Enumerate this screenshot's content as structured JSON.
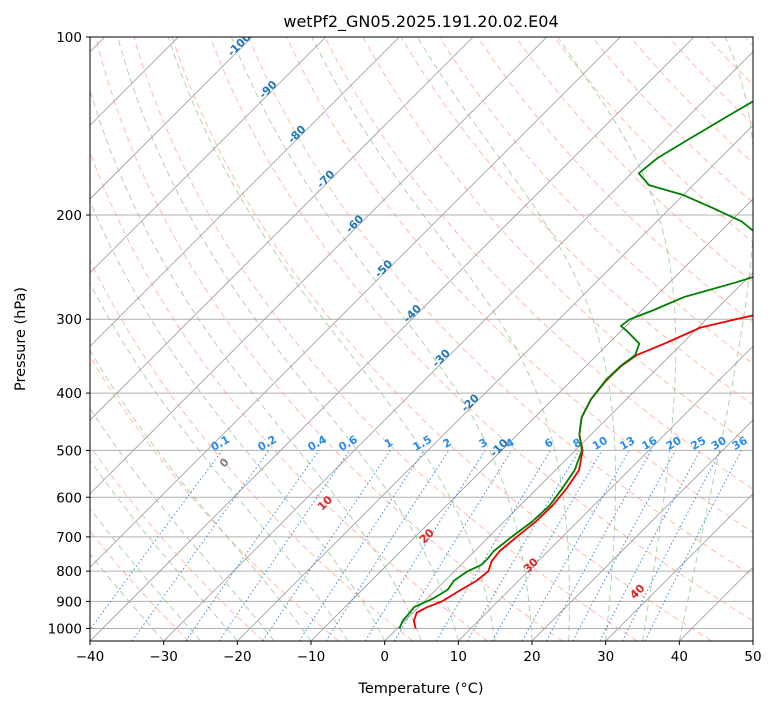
{
  "chart_data": {
    "type": "skew-t log-p",
    "title": "wetPf2_GN05.2025.191.20.02.E04",
    "xlabel": "Temperature (°C)",
    "ylabel": "Pressure (hPa)",
    "xlim": [
      -40,
      50
    ],
    "ylim": [
      1050,
      100
    ],
    "y_scale": "log",
    "skew_slope": 1,
    "grid": true,
    "x_ticks": [
      -40,
      -30,
      -20,
      -10,
      0,
      10,
      20,
      30,
      40,
      50
    ],
    "x_tick_labels": [
      "−40",
      "−30",
      "−20",
      "−10",
      "0",
      "10",
      "20",
      "30",
      "40",
      "50"
    ],
    "y_ticks": [
      100,
      200,
      300,
      400,
      500,
      600,
      700,
      800,
      900,
      1000
    ],
    "y_tick_labels": [
      "100",
      "200",
      "300",
      "400",
      "500",
      "600",
      "700",
      "800",
      "900",
      "1000"
    ],
    "colors": {
      "temperature": "#ee0000",
      "dewpoint": "#008000",
      "dry_adiabat": "#ff9070",
      "moist_adiabat": "#7fbf7f",
      "mixing_ratio": "#1e78d6",
      "isotherm": "#9a9a9a",
      "grid": "#b0b0b0",
      "dry_adiabat_label": "#d62728",
      "moist_adiabat_label": "#1f77b4",
      "mixing_ratio_label": "#2b8ce8",
      "zero_label": "#7f7f7f"
    },
    "series": [
      {
        "kind": "temperature",
        "points": [
          [
            1000,
            2.5
          ],
          [
            970,
            1.2
          ],
          [
            940,
            0.5
          ],
          [
            920,
            1.2
          ],
          [
            900,
            2.4
          ],
          [
            860,
            3.4
          ],
          [
            830,
            4.3
          ],
          [
            800,
            4.6
          ],
          [
            770,
            3.7
          ],
          [
            740,
            3.4
          ],
          [
            700,
            3.8
          ],
          [
            660,
            4.3
          ],
          [
            620,
            4.4
          ],
          [
            580,
            4.0
          ],
          [
            540,
            3.2
          ],
          [
            500,
            1.0
          ],
          [
            470,
            -1.6
          ],
          [
            440,
            -3.6
          ],
          [
            410,
            -4.8
          ],
          [
            380,
            -5.3
          ],
          [
            360,
            -5.2
          ],
          [
            345,
            -4.6
          ],
          [
            330,
            -2.4
          ],
          [
            310,
            0.3
          ],
          [
            300,
            4.0
          ],
          [
            290,
            8.2
          ],
          [
            280,
            11.8
          ],
          [
            260,
            17.5
          ],
          [
            240,
            22.4
          ],
          [
            220,
            26.6
          ],
          [
            200,
            30.2
          ],
          [
            180,
            33.2
          ],
          [
            160,
            36.4
          ],
          [
            140,
            40.3
          ],
          [
            120,
            45.5
          ],
          [
            100,
            51.0
          ]
        ]
      },
      {
        "kind": "dewpoint",
        "points": [
          [
            1000,
            0.3
          ],
          [
            970,
            -0.3
          ],
          [
            950,
            -0.4
          ],
          [
            920,
            -0.6
          ],
          [
            890,
            0.8
          ],
          [
            860,
            1.6
          ],
          [
            830,
            1.2
          ],
          [
            800,
            1.8
          ],
          [
            780,
            2.8
          ],
          [
            760,
            2.8
          ],
          [
            740,
            2.6
          ],
          [
            700,
            3.1
          ],
          [
            660,
            3.8
          ],
          [
            620,
            4.0
          ],
          [
            580,
            3.4
          ],
          [
            540,
            2.6
          ],
          [
            500,
            0.9
          ],
          [
            470,
            -1.6
          ],
          [
            440,
            -3.6
          ],
          [
            410,
            -4.8
          ],
          [
            380,
            -5.4
          ],
          [
            360,
            -5.3
          ],
          [
            345,
            -4.8
          ],
          [
            330,
            -5.8
          ],
          [
            315,
            -9.0
          ],
          [
            308,
            -10.7
          ],
          [
            300,
            -10.4
          ],
          [
            290,
            -8.5
          ],
          [
            275,
            -6.0
          ],
          [
            260,
            -1.0
          ],
          [
            248,
            2.6
          ],
          [
            238,
            2.3
          ],
          [
            228,
            -1.8
          ],
          [
            215,
            -4.8
          ],
          [
            205,
            -8.5
          ],
          [
            195,
            -14.0
          ],
          [
            185,
            -20.0
          ],
          [
            178,
            -26.0
          ],
          [
            170,
            -29.0
          ],
          [
            160,
            -28.5
          ],
          [
            150,
            -27.0
          ],
          [
            135,
            -24.5
          ],
          [
            120,
            -21.5
          ],
          [
            110,
            -19.0
          ],
          [
            100,
            -16.7
          ]
        ]
      }
    ],
    "dry_adiabat_labels": [
      "-100",
      "-90",
      "-80",
      "-70",
      "-60",
      "-50",
      "-40",
      "-30",
      "-20",
      "-10",
      "0",
      "10",
      "20",
      "30",
      "40"
    ],
    "mixing_ratio_labels": [
      "0.1",
      "0.2",
      "0.4",
      "0.6",
      "1",
      "1.5",
      "2",
      "3",
      "4",
      "6",
      "8",
      "10",
      "13",
      "16",
      "20",
      "25",
      "30",
      "36"
    ]
  }
}
